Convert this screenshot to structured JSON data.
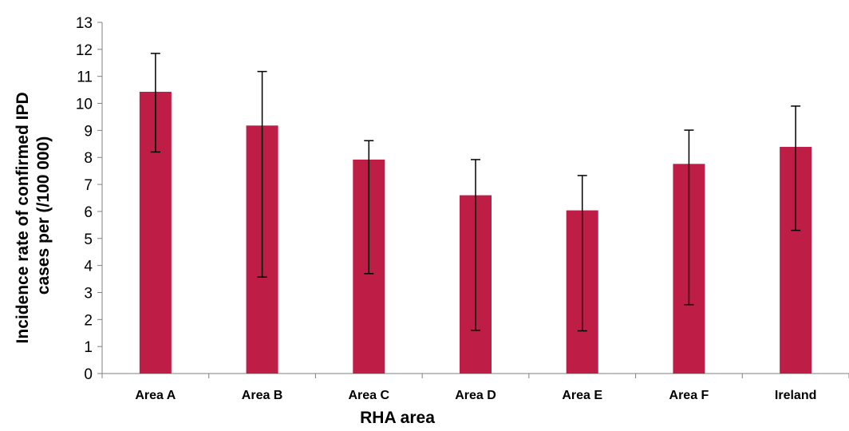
{
  "chart_data": {
    "type": "bar",
    "categories": [
      "Area A",
      "Area B",
      "Area C",
      "Area D",
      "Area E",
      "Area F",
      "Ireland"
    ],
    "values": [
      10.43,
      9.18,
      7.92,
      6.6,
      6.04,
      7.76,
      8.39
    ],
    "error_low": [
      8.2,
      3.57,
      3.7,
      1.6,
      1.58,
      2.55,
      5.3
    ],
    "error_high": [
      11.85,
      11.18,
      8.62,
      7.92,
      7.33,
      9.01,
      9.9
    ],
    "xlabel": "RHA area",
    "ylabel_lines": [
      "Incidence rate of confirmed IPD",
      "cases per (/100 000)"
    ],
    "ylim": [
      0,
      13
    ],
    "yticks": [
      "0",
      "1",
      "2",
      "3",
      "4",
      "5",
      "6",
      "7",
      "8",
      "9",
      "10",
      "11",
      "12",
      "13"
    ],
    "grid": false,
    "bar_color": "#be1e45"
  }
}
